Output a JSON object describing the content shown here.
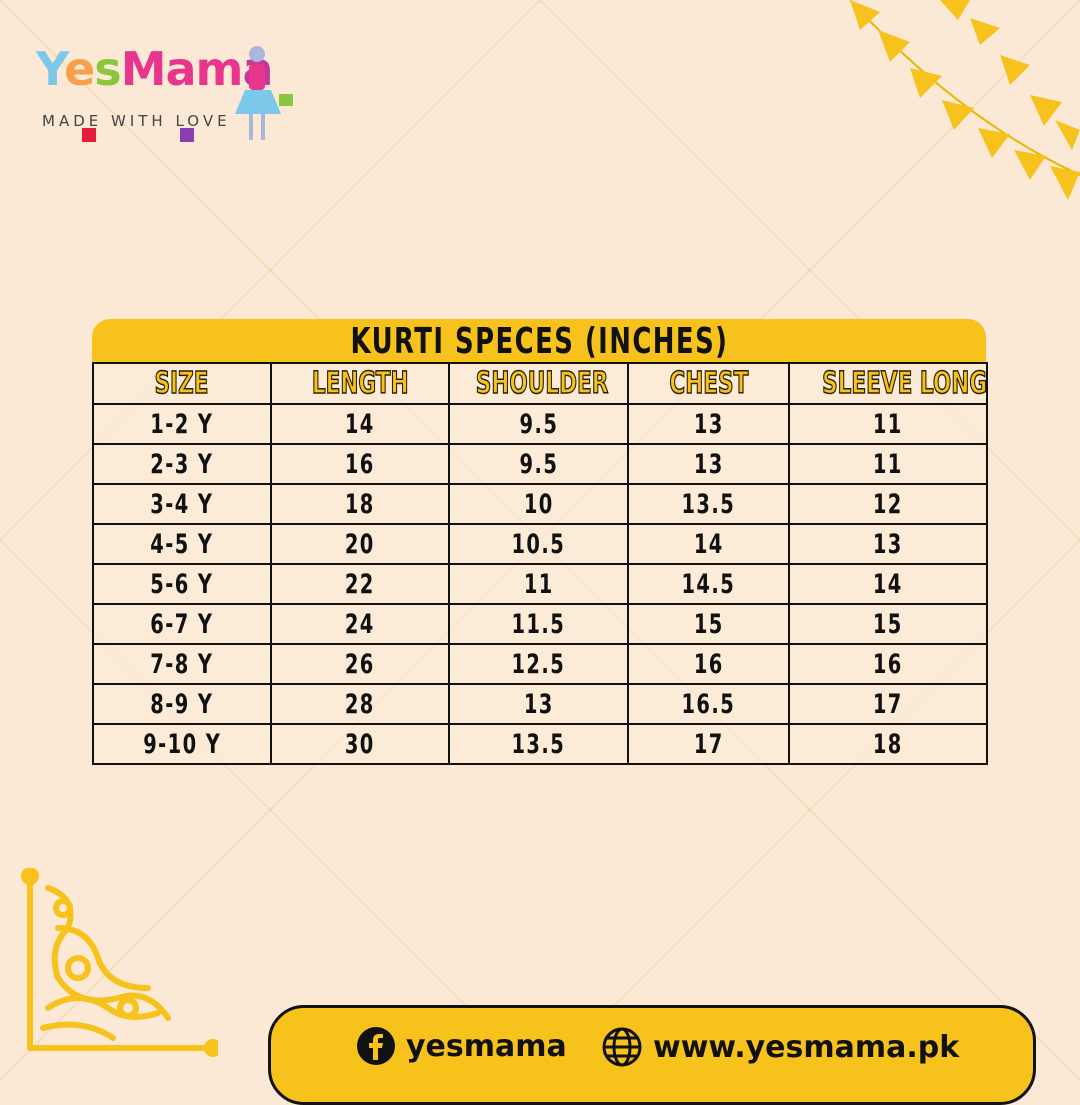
{
  "brand": {
    "name_parts": [
      "Y",
      "e",
      "s",
      "M",
      "a",
      "m",
      "a"
    ],
    "tagline": "MADE WITH LOVE"
  },
  "table": {
    "title": "KURTI SPECES (INCHES)",
    "headers": [
      "SIZE",
      "LENGTH",
      "SHOULDER",
      "CHEST",
      "SLEEVE LONG"
    ],
    "rows": [
      [
        "1-2 Y",
        "14",
        "9.5",
        "13",
        "11"
      ],
      [
        "2-3 Y",
        "16",
        "9.5",
        "13",
        "11"
      ],
      [
        "3-4 Y",
        "18",
        "10",
        "13.5",
        "12"
      ],
      [
        "4-5 Y",
        "20",
        "10.5",
        "14",
        "13"
      ],
      [
        "5-6 Y",
        "22",
        "11",
        "14.5",
        "14"
      ],
      [
        "6-7 Y",
        "24",
        "11.5",
        "15",
        "15"
      ],
      [
        "7-8 Y",
        "26",
        "12.5",
        "16",
        "16"
      ],
      [
        "8-9 Y",
        "28",
        "13",
        "16.5",
        "17"
      ],
      [
        "9-10 Y",
        "30",
        "13.5",
        "17",
        "18"
      ]
    ]
  },
  "footer": {
    "facebook": "yesmama",
    "website": "www.yesmama.pk",
    "facebook_icon": "facebook-icon",
    "globe_icon": "globe-icon"
  },
  "colors": {
    "accent": "#f7c21c",
    "background": "#fbe9d6",
    "text": "#111111"
  }
}
